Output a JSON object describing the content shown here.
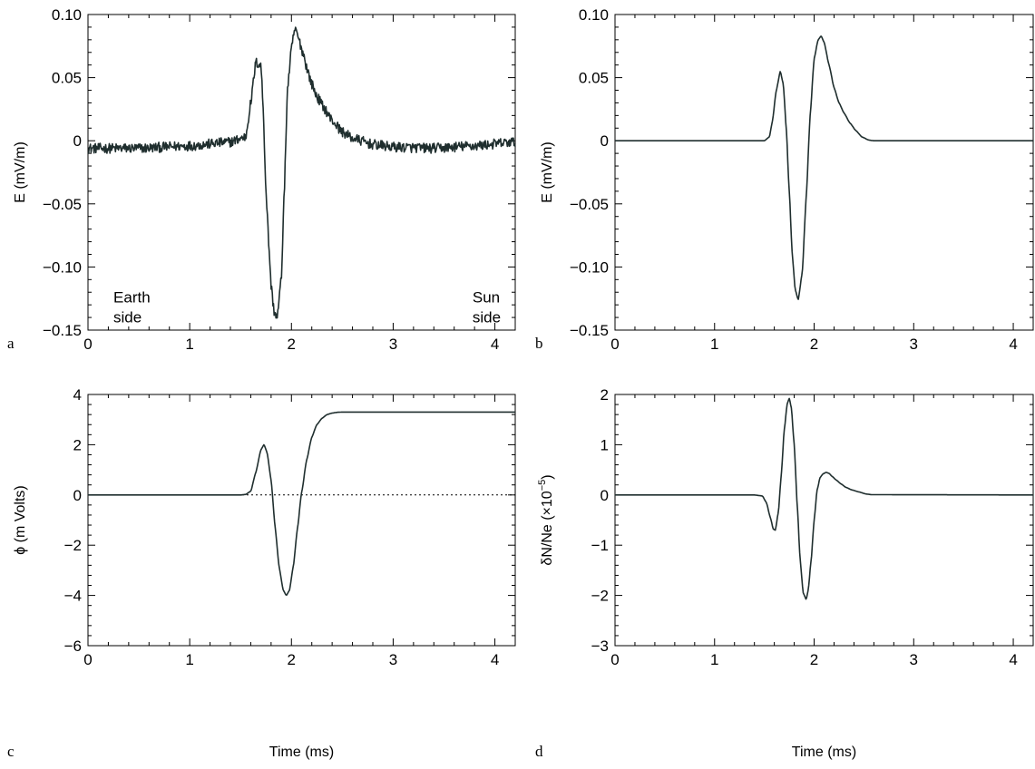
{
  "chart_data": [
    {
      "type": "line",
      "panel": "a",
      "xlabel": "",
      "ylabel": "E (mV/m)",
      "xlim": [
        0,
        4.2
      ],
      "ylim": [
        -0.15,
        0.1
      ],
      "xticks": [
        0,
        1,
        2,
        3,
        4
      ],
      "yticks": [
        -0.15,
        -0.1,
        -0.05,
        0,
        0.05,
        0.1
      ],
      "ytick_labels": [
        "−0.15",
        "−0.10",
        "−0.05",
        "0",
        "0.05",
        "0.10"
      ],
      "noisy": true,
      "noise_amplitude": 0.004,
      "annotations": [
        {
          "lines": [
            "Earth",
            "side"
          ],
          "x": 0.25,
          "y": -0.128
        },
        {
          "lines": [
            "Sun",
            "side"
          ],
          "x": 3.78,
          "y": -0.128
        }
      ],
      "series": [
        {
          "x": [
            0,
            0.5,
            1.0,
            1.4,
            1.55,
            1.6,
            1.65,
            1.7,
            1.72,
            1.75,
            1.78,
            1.8,
            1.83,
            1.86,
            1.9,
            1.93,
            1.96,
            2.0,
            2.03,
            2.05,
            2.08,
            2.12,
            2.16,
            2.2,
            2.25,
            2.32,
            2.4,
            2.5,
            2.6,
            2.8,
            3.0,
            3.4,
            3.8,
            4.2
          ],
          "y": [
            -0.006,
            -0.006,
            -0.004,
            -0.001,
            0.003,
            0.03,
            0.062,
            0.06,
            0.03,
            -0.04,
            -0.085,
            -0.115,
            -0.135,
            -0.14,
            -0.11,
            -0.04,
            0.04,
            0.072,
            0.088,
            0.086,
            0.078,
            0.068,
            0.055,
            0.045,
            0.035,
            0.026,
            0.016,
            0.007,
            0.002,
            -0.003,
            -0.005,
            -0.006,
            -0.004,
            -0.001
          ]
        }
      ]
    },
    {
      "type": "line",
      "panel": "b",
      "xlabel": "",
      "ylabel": "E (mV/m)",
      "xlim": [
        0,
        4.2
      ],
      "ylim": [
        -0.15,
        0.1
      ],
      "xticks": [
        0,
        1,
        2,
        3,
        4
      ],
      "yticks": [
        -0.15,
        -0.1,
        -0.05,
        0,
        0.05,
        0.1
      ],
      "ytick_labels": [
        "−0.15",
        "−0.10",
        "−0.05",
        "0",
        "0.05",
        "0.10"
      ],
      "series": [
        {
          "x": [
            0,
            1.4,
            1.5,
            1.55,
            1.58,
            1.62,
            1.66,
            1.69,
            1.72,
            1.75,
            1.78,
            1.81,
            1.84,
            1.88,
            1.92,
            1.96,
            2.0,
            2.04,
            2.07,
            2.1,
            2.15,
            2.2,
            2.25,
            2.3,
            2.36,
            2.42,
            2.48,
            2.55,
            2.6,
            4.2
          ],
          "y": [
            0,
            0,
            0,
            0.003,
            0.015,
            0.04,
            0.055,
            0.045,
            0.01,
            -0.04,
            -0.09,
            -0.118,
            -0.126,
            -0.105,
            -0.045,
            0.02,
            0.065,
            0.08,
            0.083,
            0.078,
            0.06,
            0.042,
            0.03,
            0.022,
            0.014,
            0.008,
            0.003,
            0.0005,
            0,
            0
          ]
        }
      ]
    },
    {
      "type": "line",
      "panel": "c",
      "xlabel": "Time (ms)",
      "ylabel": "ϕ (m Volts)",
      "xlim": [
        0,
        4.2
      ],
      "ylim": [
        -6,
        4
      ],
      "xticks": [
        0,
        1,
        2,
        3,
        4
      ],
      "yticks": [
        -6,
        -4,
        -2,
        0,
        2,
        4
      ],
      "ytick_labels": [
        "−6",
        "−4",
        "−2",
        "0",
        "2",
        "4"
      ],
      "zero_line": true,
      "series": [
        {
          "x": [
            0,
            1.4,
            1.5,
            1.55,
            1.6,
            1.65,
            1.7,
            1.73,
            1.76,
            1.8,
            1.84,
            1.88,
            1.92,
            1.95,
            1.98,
            2.02,
            2.06,
            2.1,
            2.15,
            2.2,
            2.25,
            2.3,
            2.35,
            2.4,
            2.45,
            2.5,
            2.55,
            2.6,
            4.2
          ],
          "y": [
            0,
            0,
            0,
            0.02,
            0.15,
            0.9,
            1.8,
            2.0,
            1.7,
            0.6,
            -1.3,
            -2.9,
            -3.8,
            -4.0,
            -3.8,
            -2.8,
            -1.3,
            0.1,
            1.4,
            2.3,
            2.8,
            3.05,
            3.2,
            3.26,
            3.29,
            3.3,
            3.3,
            3.3,
            3.3
          ]
        }
      ]
    },
    {
      "type": "line",
      "panel": "d",
      "xlabel": "Time (ms)",
      "ylabel": "δN/Ne (×10",
      "ylabel_sup": "−5",
      "ylabel_close": ")",
      "xlim": [
        0,
        4.2
      ],
      "ylim": [
        -3,
        2
      ],
      "xticks": [
        0,
        1,
        2,
        3,
        4
      ],
      "yticks": [
        -3,
        -2,
        -1,
        0,
        1,
        2
      ],
      "ytick_labels": [
        "−3",
        "−2",
        "−1",
        "0",
        "1",
        "2"
      ],
      "series": [
        {
          "x": [
            0,
            1.4,
            1.48,
            1.52,
            1.56,
            1.59,
            1.61,
            1.64,
            1.67,
            1.7,
            1.73,
            1.75,
            1.77,
            1.8,
            1.83,
            1.86,
            1.89,
            1.92,
            1.94,
            1.97,
            2.0,
            2.03,
            2.06,
            2.09,
            2.12,
            2.15,
            2.18,
            2.22,
            2.27,
            2.32,
            2.38,
            2.45,
            2.52,
            2.58,
            4.2
          ],
          "y": [
            0,
            0,
            -0.02,
            -0.15,
            -0.45,
            -0.68,
            -0.7,
            -0.35,
            0.4,
            1.3,
            1.82,
            1.92,
            1.75,
            1.0,
            -0.2,
            -1.3,
            -1.95,
            -2.08,
            -1.9,
            -1.3,
            -0.5,
            0.1,
            0.35,
            0.42,
            0.45,
            0.43,
            0.37,
            0.3,
            0.22,
            0.15,
            0.1,
            0.06,
            0.02,
            0.005,
            0
          ]
        }
      ]
    }
  ]
}
